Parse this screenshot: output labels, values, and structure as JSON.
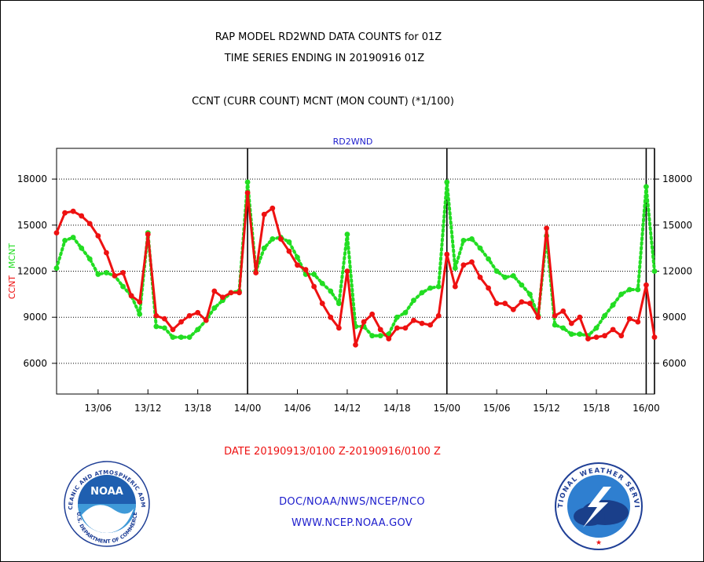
{
  "header": {
    "title_line1": "RAP MODEL RD2WND DATA COUNTS for 01Z",
    "title_line2": "TIME SERIES ENDING IN 20190916 01Z",
    "subtitle": "CCNT (CURR COUNT) MCNT (MON COUNT) (*1/100)"
  },
  "footer": {
    "date_range": "DATE 20190913/0100 Z-20190916/0100 Z",
    "org": "DOC/NOAA/NWS/NCEP/NCO",
    "url": "WWW.NCEP.NOAA.GOV",
    "noaa_logo": {
      "name": "NOAA",
      "ring_text": "NATIONAL OCEANIC AND ATMOSPHERIC ADMINISTRATION",
      "ring_text_bottom": "U.S. DEPARTMENT OF COMMERCE"
    },
    "nws_logo": {
      "ring_text": "NATIONAL WEATHER SERVICE"
    }
  },
  "colors": {
    "ccnt": "#ee1111",
    "mcnt": "#22dd22",
    "plot_label": "#1c1ccc",
    "date_text": "#ee1111"
  },
  "chart_data": {
    "type": "line",
    "title": "RD2WND",
    "ylabel_left": [
      "CCNT",
      "MCNT"
    ],
    "ylim": [
      4000,
      20000
    ],
    "y_ticks": [
      6000,
      9000,
      12000,
      15000,
      18000
    ],
    "y_tick_labels": [
      "6000",
      "9000",
      "12000",
      "15000",
      "18000"
    ],
    "x_range_hours": [
      0,
      72
    ],
    "x_ticks_hours": [
      5,
      11,
      17,
      23,
      29,
      35,
      41,
      47,
      53,
      59,
      65,
      71
    ],
    "x_tick_labels": [
      "13/06",
      "13/12",
      "13/18",
      "14/00",
      "14/06",
      "14/12",
      "14/18",
      "15/00",
      "15/06",
      "15/12",
      "15/18",
      "16/00"
    ],
    "day_boundaries_hours": [
      23,
      47,
      71,
      72
    ],
    "grid": "horizontal dotted",
    "x_hours": [
      0,
      1,
      2,
      3,
      4,
      5,
      6,
      7,
      8,
      9,
      10,
      11,
      12,
      13,
      14,
      15,
      16,
      17,
      18,
      19,
      20,
      21,
      22,
      23,
      24,
      25,
      26,
      27,
      28,
      29,
      30,
      31,
      32,
      33,
      34,
      35,
      36,
      37,
      38,
      39,
      40,
      41,
      42,
      43,
      44,
      45,
      46,
      47,
      48,
      49,
      50,
      51,
      52,
      53,
      54,
      55,
      56,
      57,
      58,
      59,
      60,
      61,
      62,
      63,
      64,
      65,
      66,
      67,
      68,
      69,
      70,
      71,
      72
    ],
    "series": [
      {
        "name": "CCNT",
        "style": "solid",
        "values": [
          14500,
          15800,
          15900,
          15600,
          15100,
          14300,
          13200,
          11700,
          11900,
          10400,
          10000,
          14400,
          9100,
          8900,
          8200,
          8700,
          9100,
          9300,
          8800,
          10700,
          10300,
          10600,
          10600,
          17100,
          11900,
          15700,
          16100,
          14100,
          13300,
          12400,
          12100,
          11000,
          9900,
          9000,
          8300,
          12000,
          7200,
          8700,
          9200,
          8200,
          7600,
          8300,
          8300,
          8800,
          8600,
          8500,
          9100,
          13100,
          11000,
          12400,
          12600,
          11600,
          10900,
          9900,
          9900,
          9500,
          10000,
          9900,
          9000,
          14800,
          9100,
          9400,
          8600,
          9000,
          7600,
          7700,
          7800,
          8200,
          7800,
          8900,
          8700,
          11100,
          7700
        ]
      },
      {
        "name": "MCNT",
        "style": "dotted",
        "values": [
          12200,
          14000,
          14200,
          13500,
          12800,
          11800,
          11900,
          11700,
          11000,
          10400,
          9200,
          14500,
          8400,
          8300,
          7700,
          7700,
          7700,
          8200,
          8800,
          9600,
          10100,
          10600,
          10700,
          17800,
          12000,
          13500,
          14100,
          14200,
          13900,
          12900,
          11800,
          11800,
          11200,
          10700,
          9900,
          14400,
          8400,
          8400,
          7800,
          7800,
          7900,
          9000,
          9300,
          10100,
          10600,
          10900,
          11000,
          17800,
          12200,
          14000,
          14100,
          13500,
          12800,
          12000,
          11600,
          11700,
          11100,
          10500,
          9100,
          14300,
          8500,
          8300,
          7900,
          7900,
          7800,
          8300,
          9100,
          9800,
          10500,
          10800,
          10800,
          17500,
          12000
        ]
      }
    ]
  }
}
